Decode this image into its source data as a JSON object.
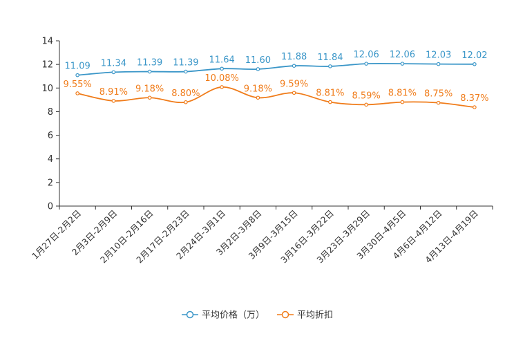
{
  "chart_data": {
    "type": "line",
    "title": "",
    "xlabel": "",
    "ylabel": "",
    "ylim": [
      0,
      14
    ],
    "yticks": [
      0,
      2,
      4,
      6,
      8,
      10,
      12,
      14
    ],
    "grid": false,
    "legend_position": "bottom-center",
    "categories": [
      "1月27日-2月2日",
      "2月3日-2月9日",
      "2月10日-2月16日",
      "2月17日-2月23日",
      "2月24日-3月1日",
      "3月2日-3月8日",
      "3月9日-3月15日",
      "3月16日-3月22日",
      "3月23日-3月29日",
      "3月30日-4月5日",
      "4月6日-4月12日",
      "4月13日-4月19日"
    ],
    "series": [
      {
        "name": "平均价格（万）",
        "color": "#3a96c8",
        "values": [
          11.09,
          11.34,
          11.39,
          11.39,
          11.64,
          11.6,
          11.88,
          11.84,
          12.06,
          12.06,
          12.03,
          12.02
        ],
        "labels": [
          "11.09",
          "11.34",
          "11.39",
          "11.39",
          "11.64",
          "11.60",
          "11.88",
          "11.84",
          "12.06",
          "12.06",
          "12.03",
          "12.02"
        ]
      },
      {
        "name": "平均折扣",
        "color": "#f07c1a",
        "values": [
          9.55,
          8.91,
          9.18,
          8.8,
          10.08,
          9.18,
          9.59,
          8.81,
          8.59,
          8.81,
          8.75,
          8.37
        ],
        "labels": [
          "9.55%",
          "8.91%",
          "9.18%",
          "8.80%",
          "10.08%",
          "9.18%",
          "9.59%",
          "8.81%",
          "8.59%",
          "8.81%",
          "8.75%",
          "8.37%"
        ]
      }
    ]
  }
}
